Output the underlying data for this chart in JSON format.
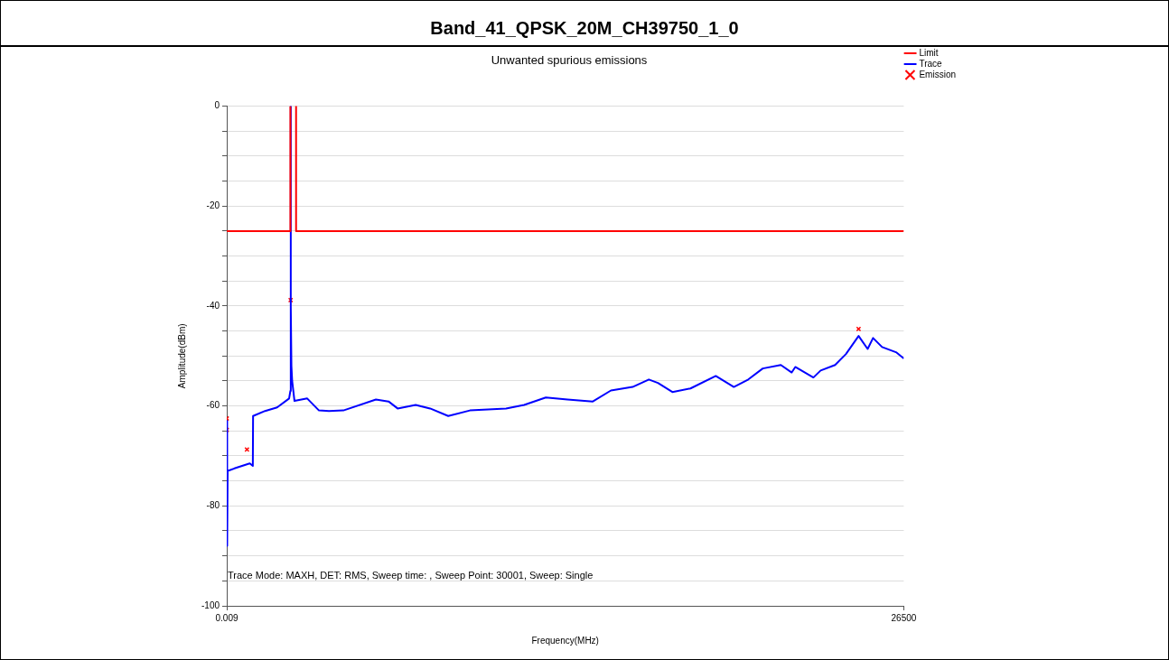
{
  "chart_data": {
    "type": "line",
    "title": "Band_41_QPSK_20M_CH39750_1_0",
    "subtitle": "Unwanted spurious emissions",
    "xlabel": "Frequency(MHz)",
    "ylabel": "Amplitude(dBm)",
    "xlim": [
      0.009,
      26500
    ],
    "xticks": [
      0.009,
      26500
    ],
    "ylim": [
      -100,
      0
    ],
    "yticks": [
      0,
      {
        "value": -5,
        "label": null
      },
      {
        "value": -10,
        "label": null
      },
      {
        "value": -15,
        "label": null
      },
      -20,
      {
        "value": -25,
        "label": null
      },
      {
        "value": -30,
        "label": null
      },
      {
        "value": -35,
        "label": null
      },
      -40,
      {
        "value": -45,
        "label": null
      },
      {
        "value": -50,
        "label": null
      },
      {
        "value": -55,
        "label": null
      },
      -60,
      {
        "value": -65,
        "label": null
      },
      {
        "value": -70,
        "label": null
      },
      {
        "value": -75,
        "label": null
      },
      -80,
      {
        "value": -85,
        "label": null
      },
      {
        "value": -90,
        "label": null
      },
      {
        "value": -95,
        "label": null
      },
      -100
    ],
    "grid": "y",
    "legend": "top right",
    "marker": "none",
    "line_style": "solid",
    "annotations": [
      "Trace Mode: MAXH, DET: RMS, Sweep time: , Sweep Point: 30001, Sweep: Single"
    ],
    "series": [
      {
        "name": "Limit",
        "type": "line",
        "color": "#ff0000",
        "x": [
          0.009,
          2490,
          2490,
          2610,
          2713,
          2713,
          26500
        ],
        "values": [
          -25,
          -25,
          0,
          null,
          0,
          -25,
          -25
        ]
      },
      {
        "name": "Trace",
        "type": "line",
        "color": "#0000ff",
        "x": [
          0.009,
          15,
          35,
          300,
          600,
          900,
          1020,
          1030,
          1500,
          1970,
          2440,
          2490,
          2500,
          2510,
          2530,
          2560,
          2650,
          3149,
          3609,
          4000,
          4564,
          5838,
          6333,
          6687,
          7394,
          7961,
          8668,
          9517,
          10932,
          11640,
          12489,
          13338,
          14329,
          15037,
          15886,
          16522,
          16876,
          17442,
          18150,
          19141,
          19848,
          20414,
          20980,
          21688,
          22113,
          22254,
          22962,
          23245,
          23811,
          24236,
          24731,
          25085,
          25297,
          25651,
          26217,
          26500
        ],
        "values": [
          -63,
          -88,
          -73,
          -72.5,
          -72,
          -71.5,
          -72,
          -62,
          -61,
          -60.3,
          -58.5,
          -57,
          0,
          -40,
          -52,
          -55,
          -59,
          -58.5,
          -60.9,
          -61,
          -60.9,
          -58.7,
          -59.1,
          -60.5,
          -59.8,
          -60.5,
          -62,
          -60.9,
          -60.5,
          -59.8,
          -58.3,
          -58.7,
          -59.1,
          -56.9,
          -56.2,
          -54.7,
          -55.4,
          -57.2,
          -56.5,
          -54,
          -56.2,
          -54.7,
          -52.5,
          -51.8,
          -53.3,
          -52.2,
          -54.3,
          -52.9,
          -51.8,
          -49.6,
          -46,
          -48.6,
          -46.4,
          -48.2,
          -49.3,
          -50.5
        ]
      },
      {
        "name": "Emission",
        "type": "scatter",
        "marker": "cross",
        "color": "#ff0000",
        "x": [
          0.009,
          0.009,
          790,
          2500,
          24731
        ],
        "values": [
          -62.5,
          -64.8,
          -68.7,
          -38.8,
          -44.6
        ]
      }
    ]
  }
}
